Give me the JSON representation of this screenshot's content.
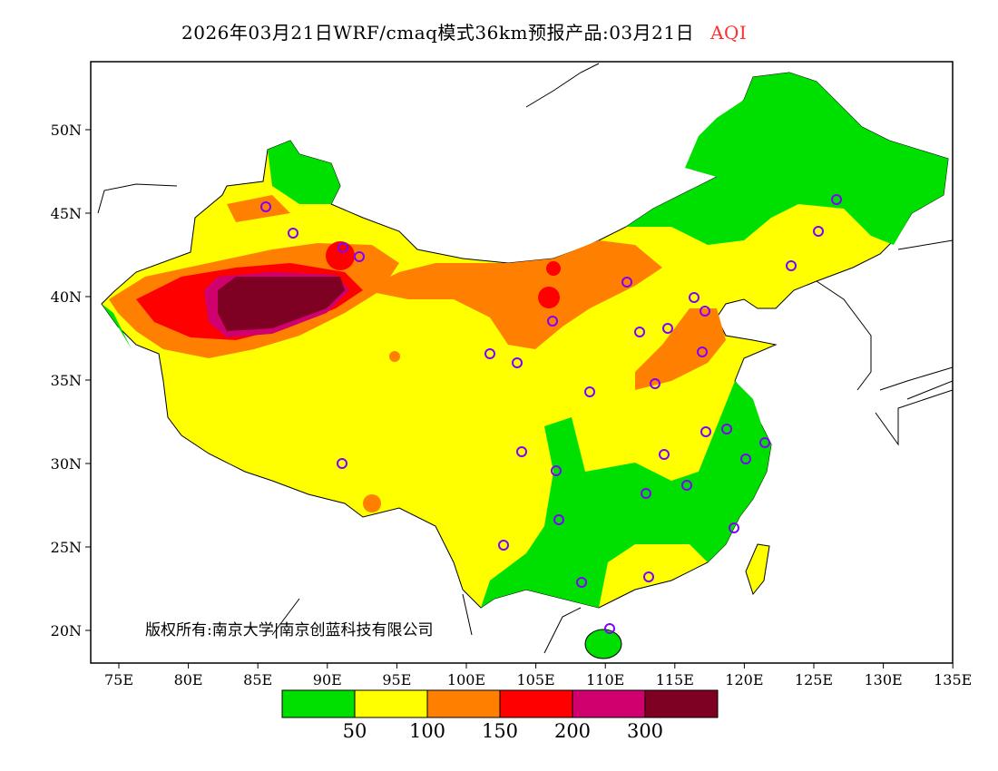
{
  "header": {
    "title": "2026年03月21日WRF/cmaq模式36km预报产品:03月21日",
    "variable": "AQI",
    "variable_color": "#ff3030"
  },
  "axes": {
    "lon_ticks": [
      "75E",
      "80E",
      "85E",
      "90E",
      "95E",
      "100E",
      "105E",
      "110E",
      "115E",
      "120E",
      "125E",
      "130E",
      "135E"
    ],
    "lat_ticks": [
      "50N",
      "45N",
      "40N",
      "35N",
      "30N",
      "25N",
      "20N"
    ]
  },
  "legend": {
    "colors": [
      "#00e000",
      "#ffff00",
      "#ff8000",
      "#ff0000",
      "#d0006e",
      "#7e0023"
    ],
    "thresholds": [
      "50",
      "100",
      "150",
      "200",
      "300"
    ]
  },
  "copyright": "版权所有:南京大学|南京创蓝科技有限公司"
}
